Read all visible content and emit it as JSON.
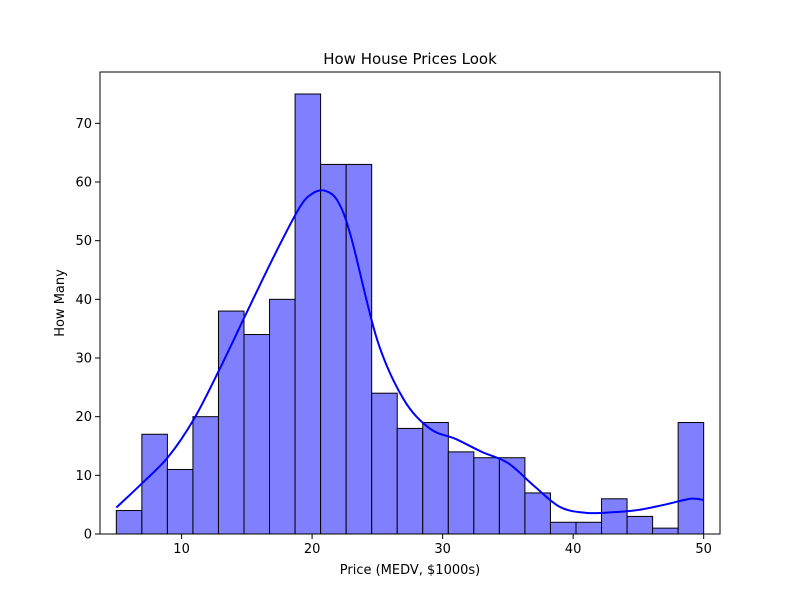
{
  "chart_data": {
    "type": "bar",
    "title": "How House Prices Look",
    "xlabel": "Price (MEDV, $1000s)",
    "ylabel": "How Many",
    "xlim": [
      3.75,
      51.25
    ],
    "ylim": [
      0,
      78.75
    ],
    "x_ticks": [
      10,
      20,
      30,
      40,
      50
    ],
    "y_ticks": [
      0,
      10,
      20,
      30,
      40,
      50,
      60,
      70
    ],
    "bin_edges": [
      5.0,
      6.957,
      8.913,
      10.87,
      12.826,
      14.783,
      16.739,
      18.696,
      20.652,
      22.609,
      24.565,
      26.522,
      28.478,
      30.435,
      32.391,
      34.348,
      36.304,
      38.261,
      40.217,
      42.174,
      44.13,
      46.087,
      48.043,
      50.0
    ],
    "values": [
      4,
      17,
      11,
      20,
      38,
      34,
      40,
      75,
      63,
      63,
      24,
      18,
      19,
      14,
      13,
      13,
      7,
      2,
      2,
      6,
      3,
      1,
      19
    ],
    "kde": {
      "x": [
        5,
        7,
        9,
        11,
        13,
        15,
        17,
        19,
        20,
        21,
        22,
        23,
        25,
        27,
        29,
        31,
        33,
        35,
        37,
        39,
        41,
        43,
        45,
        47,
        49,
        50
      ],
      "y": [
        4.5,
        8.7,
        13.2,
        19.8,
        28.5,
        37.8,
        47.0,
        55.5,
        58.0,
        58.5,
        56.6,
        50.5,
        33.0,
        23.0,
        18.0,
        16.2,
        14.0,
        12.1,
        8.2,
        4.6,
        3.6,
        3.7,
        4.1,
        5.0,
        6.0,
        5.8
      ]
    },
    "grid": false,
    "bar_color": "#8080ff",
    "bar_edge_color": "#000000",
    "kde_color": "#0000ff"
  }
}
